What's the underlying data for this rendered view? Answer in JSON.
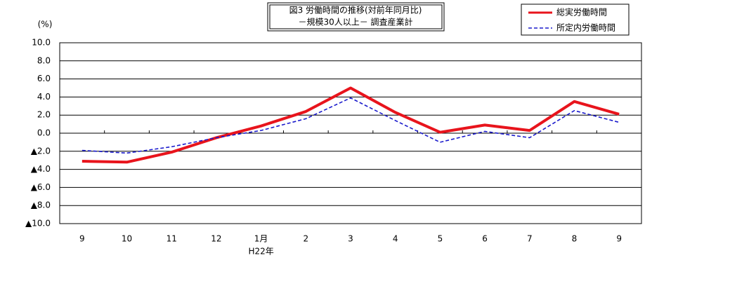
{
  "chart_data": {
    "type": "line",
    "title": "図3 労働時間の推移(対前年同月比)",
    "subtitle": "－規模30人以上－ 調査産業計",
    "y_label": "(%)",
    "annotation": "H22年",
    "categories": [
      "9",
      "10",
      "11",
      "12",
      "1月",
      "2",
      "3",
      "4",
      "5",
      "6",
      "7",
      "8",
      "9"
    ],
    "series": [
      {
        "name": "総実労働時間",
        "color": "#e8141c",
        "dash": false,
        "values": [
          -3.1,
          -3.2,
          -2.1,
          -0.5,
          0.8,
          2.4,
          5.0,
          2.3,
          0.1,
          0.9,
          0.3,
          3.5,
          2.1
        ]
      },
      {
        "name": "所定内労働時間",
        "color": "#1a1acc",
        "dash": true,
        "values": [
          -1.9,
          -2.2,
          -1.5,
          -0.5,
          0.3,
          1.6,
          3.9,
          1.4,
          -1.0,
          0.2,
          -0.5,
          2.5,
          1.2
        ]
      }
    ],
    "ylim": [
      -10,
      10
    ],
    "yticks": [
      {
        "value": -10,
        "label": "▲10.0"
      },
      {
        "value": -8,
        "label": "▲8.0"
      },
      {
        "value": -6,
        "label": "▲6.0"
      },
      {
        "value": -4,
        "label": "▲4.0"
      },
      {
        "value": -2,
        "label": "▲2.0"
      },
      {
        "value": 0,
        "label": "0.0"
      },
      {
        "value": 2,
        "label": "2.0"
      },
      {
        "value": 4,
        "label": "4.0"
      },
      {
        "value": 6,
        "label": "6.0"
      },
      {
        "value": 8,
        "label": "8.0"
      },
      {
        "value": 10,
        "label": "10.0"
      }
    ],
    "grid": true
  }
}
